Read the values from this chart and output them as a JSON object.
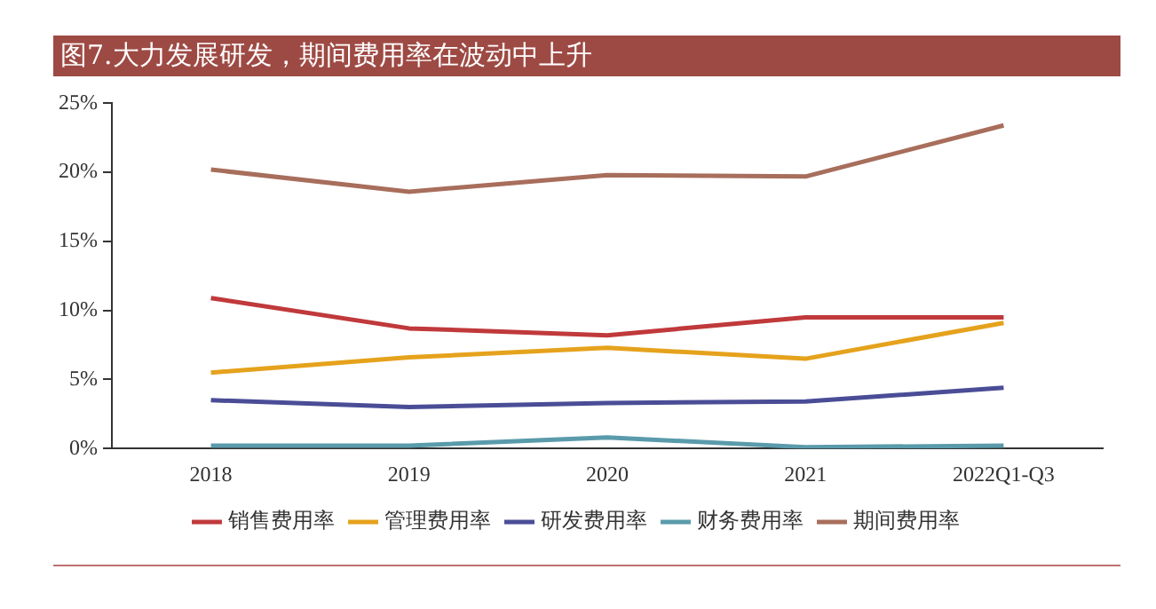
{
  "chart_data": {
    "type": "line",
    "title": "图7.大力发展研发，期间费用率在波动中上升",
    "categories": [
      "2018",
      "2019",
      "2020",
      "2021",
      "2022Q1-Q3"
    ],
    "series": [
      {
        "name": "销售费用率",
        "color": "#c0393b",
        "values": [
          10.9,
          8.7,
          8.2,
          9.5,
          9.5
        ]
      },
      {
        "name": "管理费用率",
        "color": "#e5a21c",
        "values": [
          5.5,
          6.6,
          7.3,
          6.5,
          9.1
        ]
      },
      {
        "name": "研发费用率",
        "color": "#4a4d96",
        "values": [
          3.5,
          3.0,
          3.3,
          3.4,
          4.4
        ]
      },
      {
        "name": "财务费用率",
        "color": "#5a9bab",
        "values": [
          0.2,
          0.2,
          0.8,
          0.1,
          0.2
        ]
      },
      {
        "name": "期间费用率",
        "color": "#a86e5c",
        "values": [
          20.2,
          18.6,
          19.8,
          19.7,
          23.4
        ]
      }
    ],
    "ylim": [
      0,
      25
    ],
    "yticks": [
      {
        "value": 0,
        "label": "0%"
      },
      {
        "value": 5,
        "label": "5%"
      },
      {
        "value": 10,
        "label": "10%"
      },
      {
        "value": 15,
        "label": "15%"
      },
      {
        "value": 20,
        "label": "20%"
      },
      {
        "value": 25,
        "label": "25%"
      }
    ],
    "grid": false,
    "legend": "bottom",
    "marker": "none",
    "line_style": "solid"
  }
}
